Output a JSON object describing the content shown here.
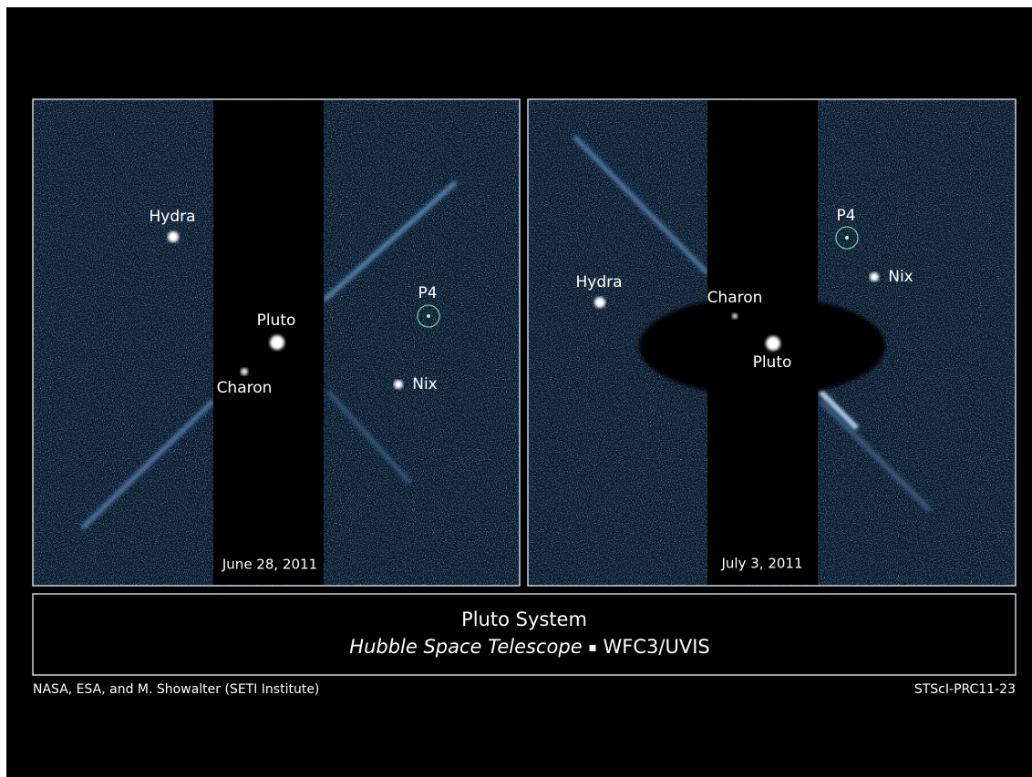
{
  "panels": [
    {
      "date": "June 28, 2011",
      "objects": [
        {
          "label": "Hydra"
        },
        {
          "label": "Pluto"
        },
        {
          "label": "Charon"
        },
        {
          "label": "P4"
        },
        {
          "label": "Nix"
        }
      ]
    },
    {
      "date": "July 3, 2011",
      "objects": [
        {
          "label": "Hydra"
        },
        {
          "label": "Charon"
        },
        {
          "label": "Pluto"
        },
        {
          "label": "P4"
        },
        {
          "label": "Nix"
        }
      ]
    }
  ],
  "caption": {
    "title": "Pluto System",
    "telescope": "Hubble Space Telescope",
    "separator": "▪",
    "instrument": "WFC3/UVIS"
  },
  "credits": {
    "left": "NASA, ESA, and M. Showalter (SETI Institute)",
    "right": "STScI-PRC11-23"
  }
}
